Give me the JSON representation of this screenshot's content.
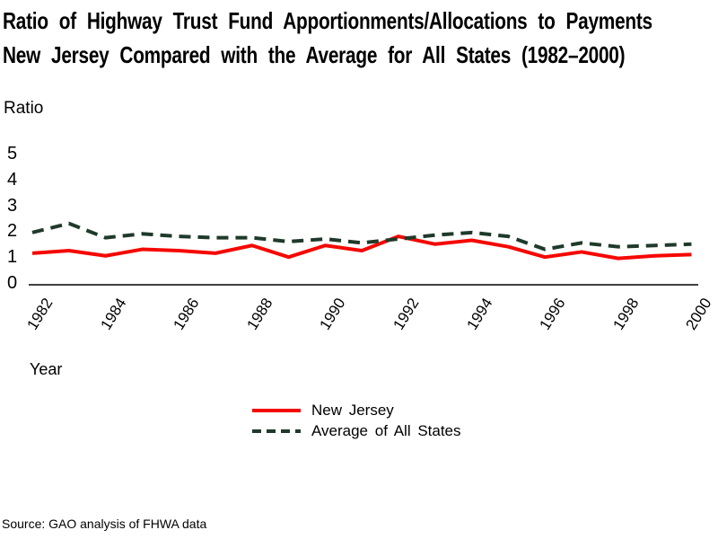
{
  "title": {
    "line1": "Ratio of Highway Trust Fund Apportionments/Allocations to Payments",
    "line2": "New Jersey Compared with the Average for All States (1982–2000)"
  },
  "y_axis": {
    "label": "Ratio",
    "ticks": [
      "5",
      "4",
      "3",
      "2",
      "1",
      "0"
    ]
  },
  "x_axis": {
    "label": "Year",
    "ticks": [
      "1982",
      "1984",
      "1986",
      "1988",
      "1990",
      "1992",
      "1994",
      "1996",
      "1998",
      "2000"
    ]
  },
  "legend": {
    "items": [
      {
        "label": "New Jersey",
        "style": "solid",
        "color": "#f50800"
      },
      {
        "label": "Average of All States",
        "style": "dashed",
        "color": "#1f3a2a"
      }
    ]
  },
  "source": "Source: GAO analysis of FHWA data",
  "colors": {
    "new_jersey": "#f50800",
    "average_all_states": "#1f3a2a",
    "axis": "#000000"
  },
  "chart_data": {
    "type": "line",
    "title": "Ratio of Highway Trust Fund Apportionments/Allocations to Payments — New Jersey Compared with the Average for All States (1982–2000)",
    "xlabel": "Year",
    "ylabel": "Ratio",
    "x": [
      1982,
      1983,
      1984,
      1985,
      1986,
      1987,
      1988,
      1989,
      1990,
      1991,
      1992,
      1993,
      1994,
      1995,
      1996,
      1997,
      1998,
      1999,
      2000
    ],
    "x_tick_years": [
      1982,
      1984,
      1986,
      1988,
      1990,
      1992,
      1994,
      1996,
      1998,
      2000
    ],
    "ylim": [
      0,
      5
    ],
    "y_ticks": [
      0,
      1,
      2,
      3,
      4,
      5
    ],
    "grid": false,
    "legend_position": "bottom-center",
    "series": [
      {
        "name": "New Jersey",
        "style": "solid",
        "color": "#f50800",
        "values": [
          1.15,
          1.25,
          1.05,
          1.3,
          1.25,
          1.15,
          1.45,
          1.0,
          1.45,
          1.25,
          1.8,
          1.5,
          1.65,
          1.4,
          1.0,
          1.2,
          0.95,
          1.05,
          1.1
        ]
      },
      {
        "name": "Average of All States",
        "style": "dashed",
        "color": "#1f3a2a",
        "values": [
          1.95,
          2.3,
          1.75,
          1.9,
          1.8,
          1.75,
          1.75,
          1.6,
          1.7,
          1.55,
          1.7,
          1.85,
          1.95,
          1.8,
          1.3,
          1.55,
          1.4,
          1.45,
          1.5
        ]
      }
    ]
  }
}
